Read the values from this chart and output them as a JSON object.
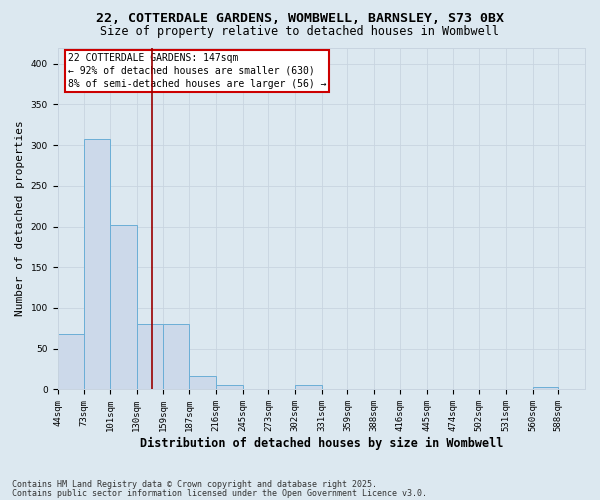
{
  "title_line1": "22, COTTERDALE GARDENS, WOMBWELL, BARNSLEY, S73 0BX",
  "title_line2": "Size of property relative to detached houses in Wombwell",
  "xlabel": "Distribution of detached houses by size in Wombwell",
  "ylabel": "Number of detached properties",
  "bin_edges": [
    44,
    73,
    101,
    130,
    159,
    187,
    216,
    245,
    273,
    302,
    331,
    359,
    388,
    416,
    445,
    474,
    502,
    531,
    560,
    588,
    617
  ],
  "bin_heights": [
    68,
    308,
    202,
    80,
    80,
    17,
    5,
    0,
    0,
    5,
    0,
    0,
    0,
    0,
    0,
    0,
    0,
    0,
    3,
    0
  ],
  "bar_facecolor": "#ccd9ea",
  "bar_edgecolor": "#6baed6",
  "subject_value": 147,
  "subject_line_color": "#990000",
  "annotation_text": "22 COTTERDALE GARDENS: 147sqm\n← 92% of detached houses are smaller (630)\n8% of semi-detached houses are larger (56) →",
  "annotation_box_edgecolor": "#cc0000",
  "annotation_box_facecolor": "#ffffff",
  "ylim": [
    0,
    420
  ],
  "yticks": [
    0,
    50,
    100,
    150,
    200,
    250,
    300,
    350,
    400
  ],
  "grid_color": "#c8d4e0",
  "background_color": "#dce8f0",
  "footer_line1": "Contains HM Land Registry data © Crown copyright and database right 2025.",
  "footer_line2": "Contains public sector information licensed under the Open Government Licence v3.0.",
  "title_fontsize": 9.5,
  "subtitle_fontsize": 8.5,
  "axis_label_fontsize": 8,
  "tick_fontsize": 6.5,
  "footer_fontsize": 6,
  "annotation_fontsize": 7
}
